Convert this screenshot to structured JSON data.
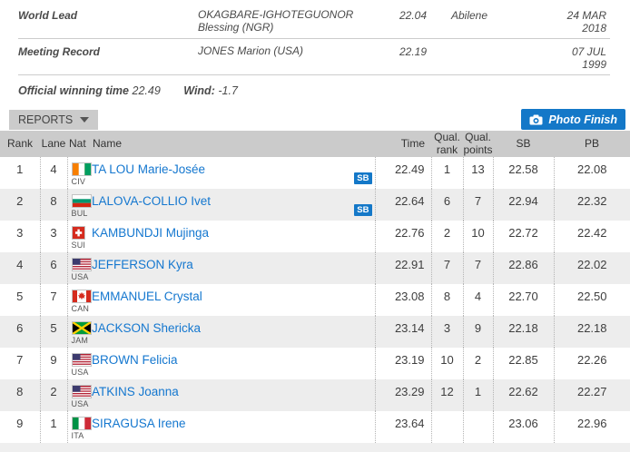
{
  "colors": {
    "accent_blue": "#1478c8",
    "link_blue": "#1477cf",
    "header_grey": "#cbcbcb",
    "row_alt_grey": "#ededed"
  },
  "records": {
    "rows": [
      {
        "label": "World Lead",
        "athlete": "OKAGBARE-IGHOTEGUONOR Blessing (NGR)",
        "mark": "22.04",
        "venue": "Abilene",
        "date": "24 MAR 2018"
      },
      {
        "label": "Meeting Record",
        "athlete": "JONES Marion (USA)",
        "mark": "22.19",
        "venue": "",
        "date": "07 JUL 1999"
      }
    ],
    "winning_time_label": "Official winning time",
    "winning_time": "22.49",
    "wind_label": "Wind:",
    "wind_value": "-1.7"
  },
  "toolbar": {
    "reports_label": "REPORTS",
    "photo_finish_label": "Photo Finish"
  },
  "results_table": {
    "headers": {
      "rank": "Rank",
      "lane": "Lane",
      "nat": "Nat",
      "name": "Name",
      "time": "Time",
      "qual_rank": "Qual. rank",
      "qual_points": "Qual. points",
      "sb": "SB",
      "pb": "PB"
    },
    "sb_badge_label": "SB",
    "rows": [
      {
        "rank": "1",
        "lane": "4",
        "nat": "CIV",
        "name": "TA LOU Marie-Josée",
        "sb_badge": true,
        "time": "22.49",
        "qual_rank": "1",
        "qual_points": "13",
        "sb": "22.58",
        "pb": "22.08"
      },
      {
        "rank": "2",
        "lane": "8",
        "nat": "BUL",
        "name": "LALOVA-COLLIO Ivet",
        "sb_badge": true,
        "time": "22.64",
        "qual_rank": "6",
        "qual_points": "7",
        "sb": "22.94",
        "pb": "22.32"
      },
      {
        "rank": "3",
        "lane": "3",
        "nat": "SUI",
        "name": "KAMBUNDJI Mujinga",
        "sb_badge": false,
        "time": "22.76",
        "qual_rank": "2",
        "qual_points": "10",
        "sb": "22.72",
        "pb": "22.42"
      },
      {
        "rank": "4",
        "lane": "6",
        "nat": "USA",
        "name": "JEFFERSON Kyra",
        "sb_badge": false,
        "time": "22.91",
        "qual_rank": "7",
        "qual_points": "7",
        "sb": "22.86",
        "pb": "22.02"
      },
      {
        "rank": "5",
        "lane": "7",
        "nat": "CAN",
        "name": "EMMANUEL Crystal",
        "sb_badge": false,
        "time": "23.08",
        "qual_rank": "8",
        "qual_points": "4",
        "sb": "22.70",
        "pb": "22.50"
      },
      {
        "rank": "6",
        "lane": "5",
        "nat": "JAM",
        "name": "JACKSON Shericka",
        "sb_badge": false,
        "time": "23.14",
        "qual_rank": "3",
        "qual_points": "9",
        "sb": "22.18",
        "pb": "22.18"
      },
      {
        "rank": "7",
        "lane": "9",
        "nat": "USA",
        "name": "BROWN Felicia",
        "sb_badge": false,
        "time": "23.19",
        "qual_rank": "10",
        "qual_points": "2",
        "sb": "22.85",
        "pb": "22.26"
      },
      {
        "rank": "8",
        "lane": "2",
        "nat": "USA",
        "name": "ATKINS Joanna",
        "sb_badge": false,
        "time": "23.29",
        "qual_rank": "12",
        "qual_points": "1",
        "sb": "22.62",
        "pb": "22.27"
      },
      {
        "rank": "9",
        "lane": "1",
        "nat": "ITA",
        "name": "SIRAGUSA Irene",
        "sb_badge": false,
        "time": "23.64",
        "qual_rank": "",
        "qual_points": "",
        "sb": "23.06",
        "pb": "22.96"
      }
    ]
  }
}
